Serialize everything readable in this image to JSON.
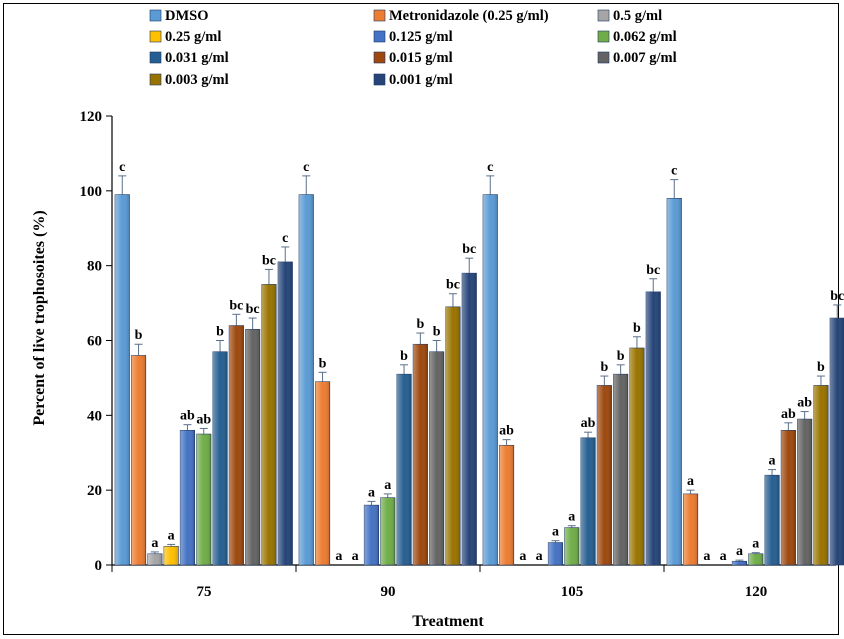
{
  "chart_data": {
    "type": "bar",
    "xlabel": "Treatment",
    "ylabel": "Percent of live trophosoites (%)",
    "categories": [
      "75",
      "90",
      "105",
      "120"
    ],
    "ylim": [
      0,
      120
    ],
    "yticks": [
      "0",
      "20",
      "40",
      "60",
      "80",
      "100",
      "120"
    ],
    "grid": false,
    "legend_position": "top",
    "series": [
      {
        "name": "DMSO",
        "color": "#5b9bd5",
        "values": [
          99,
          99,
          99,
          98
        ],
        "errors": [
          5,
          5,
          5,
          5
        ],
        "labels": [
          "c",
          "c",
          "c",
          "c"
        ]
      },
      {
        "name": "Metronidazole (0.25 g/ml)",
        "color": "#ed7d31",
        "values": [
          56,
          49,
          32,
          19
        ],
        "errors": [
          3,
          2.5,
          1.5,
          1
        ],
        "labels": [
          "b",
          "b",
          "ab",
          "a"
        ]
      },
      {
        "name": "0.5 g/ml",
        "color": "#a5a5a5",
        "values": [
          3,
          0,
          0,
          0
        ],
        "errors": [
          0.5,
          0,
          0,
          0
        ],
        "labels": [
          "a",
          "a",
          "a",
          "a"
        ]
      },
      {
        "name": "0.25 g/ml",
        "color": "#ffc000",
        "values": [
          5,
          0,
          0,
          0
        ],
        "errors": [
          0.5,
          0,
          0,
          0
        ],
        "labels": [
          "a",
          "a",
          "a",
          "a"
        ]
      },
      {
        "name": "0.125 g/ml",
        "color": "#4472c4",
        "values": [
          36,
          16,
          6,
          1
        ],
        "errors": [
          1.5,
          1,
          0.5,
          0.3
        ],
        "labels": [
          "ab",
          "a",
          "a",
          "a"
        ]
      },
      {
        "name": "0.062 g/ml",
        "color": "#70ad47",
        "values": [
          35,
          18,
          10,
          3
        ],
        "errors": [
          1.5,
          1,
          0.5,
          0.3
        ],
        "labels": [
          "ab",
          "a",
          "a",
          "a"
        ]
      },
      {
        "name": "0.031 g/ml",
        "color": "#255e91",
        "values": [
          57,
          51,
          34,
          24
        ],
        "errors": [
          3,
          2.5,
          1.5,
          1.5
        ],
        "labels": [
          "b",
          "b",
          "ab",
          "a"
        ]
      },
      {
        "name": "0.015 g/ml",
        "color": "#9e480e",
        "values": [
          64,
          59,
          48,
          36
        ],
        "errors": [
          3,
          3,
          2.5,
          2
        ],
        "labels": [
          "bc",
          "b",
          "b",
          "ab"
        ]
      },
      {
        "name": "0.007 g/ml",
        "color": "#636363",
        "values": [
          63,
          57,
          51,
          39
        ],
        "errors": [
          3,
          3,
          2.5,
          2
        ],
        "labels": [
          "bc",
          "b",
          "b",
          "ab"
        ]
      },
      {
        "name": "0.003 g/ml",
        "color": "#997300",
        "values": [
          75,
          69,
          58,
          48
        ],
        "errors": [
          4,
          3.5,
          3,
          2.5
        ],
        "labels": [
          "bc",
          "bc",
          "b",
          "b"
        ]
      },
      {
        "name": "0.001 g/ml",
        "color": "#264478",
        "values": [
          81,
          78,
          73,
          66
        ],
        "errors": [
          4,
          4,
          3.5,
          3.5
        ],
        "labels": [
          "c",
          "bc",
          "bc",
          "bc"
        ]
      }
    ]
  }
}
